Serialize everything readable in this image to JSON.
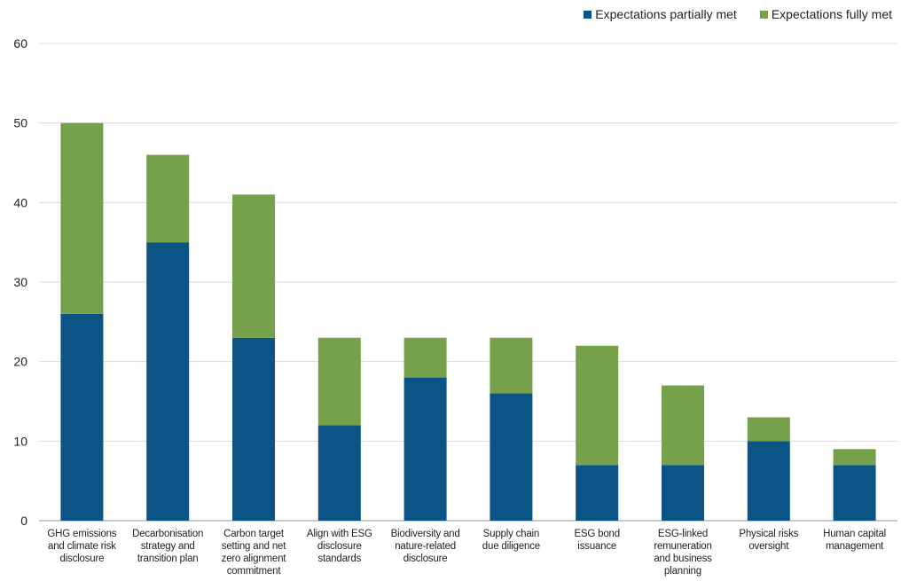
{
  "chart_data": {
    "type": "bar",
    "stacked": true,
    "categories": [
      "GHG emissions and climate risk disclosure",
      "Decarbonisation strategy and transition plan",
      "Carbon target setting and net zero alignment commitment",
      "Align with ESG disclosure standards",
      "Biodiversity and nature-related disclosure",
      "Supply chain due diligence",
      "ESG bond issuance",
      "ESG-linked remuneration and business planning",
      "Physical risks oversight",
      "Human capital management"
    ],
    "category_lines": [
      [
        "GHG emissions",
        "and climate risk",
        "disclosure"
      ],
      [
        "Decarbonisation",
        "strategy and",
        "transition plan"
      ],
      [
        "Carbon target",
        "setting and net",
        "zero alignment",
        "commitment"
      ],
      [
        "Align with ESG",
        "disclosure",
        "standards"
      ],
      [
        "Biodiversity and",
        "nature-related",
        "disclosure"
      ],
      [
        "Supply chain",
        "due diligence"
      ],
      [
        "ESG bond",
        "issuance"
      ],
      [
        "ESG-linked",
        "remuneration",
        "and business",
        "planning"
      ],
      [
        "Physical risks",
        "oversight"
      ],
      [
        "Human capital",
        "management"
      ]
    ],
    "series": [
      {
        "name": "Expectations partially met",
        "color": "#0b5485",
        "values": [
          26,
          35,
          23,
          12,
          18,
          16,
          7,
          7,
          10,
          7
        ]
      },
      {
        "name": "Expectations fully met",
        "color": "#77a04a",
        "values": [
          24,
          11,
          18,
          11,
          5,
          7,
          15,
          10,
          3,
          2
        ]
      }
    ],
    "ylim": [
      0,
      60
    ],
    "yticks": [
      0,
      10,
      20,
      30,
      40,
      50,
      60
    ],
    "grid": true,
    "legend": "top-right",
    "title": "",
    "xlabel": "",
    "ylabel": ""
  }
}
